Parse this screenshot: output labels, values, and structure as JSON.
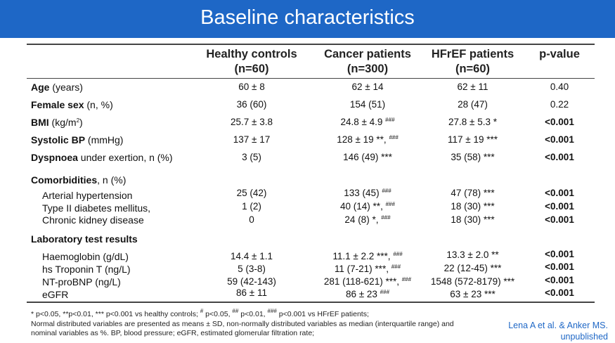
{
  "title": "Baseline characteristics",
  "columns": [
    {
      "name": "Healthy controls",
      "n": "(n=60)"
    },
    {
      "name": "Cancer patients",
      "n": "(n=300)"
    },
    {
      "name": "HFrEF patients",
      "n": "(n=60)"
    },
    {
      "name": "p-value",
      "n": ""
    }
  ],
  "rows": [
    {
      "label_bold": "Age",
      "label_rest": " (years)",
      "v1": "60 ± 8",
      "v2": "62 ± 14",
      "v2_sup": "",
      "v3": "62 ± 11",
      "v3_sup": "",
      "p": "0.40",
      "p_bold": false
    },
    {
      "label_bold": "Female sex",
      "label_rest": " (n, %)",
      "v1": "36 (60)",
      "v2": "154 (51)",
      "v2_sup": "",
      "v3": "28 (47)",
      "v3_sup": "",
      "p": "0.22",
      "p_bold": false
    },
    {
      "label_bold": "BMI",
      "label_rest": " (kg/m",
      "label_sup": "2",
      "label_end": ")",
      "v1": "25.7 ± 3.8",
      "v2": "24.8 ± 4.9",
      "v2_sup": "###",
      "v3": "27.8 ± 5.3 *",
      "v3_sup": "",
      "p": "<0.001",
      "p_bold": true
    },
    {
      "label_bold": "Systolic BP",
      "label_rest": " (mmHg)",
      "v1": "137 ± 17",
      "v2": "128 ± 19 **,",
      "v2_sup": "###",
      "v3": "117 ± 19 ***",
      "v3_sup": "",
      "p": "<0.001",
      "p_bold": true
    },
    {
      "label_bold": "Dyspnoea",
      "label_rest": " under exertion, n (%)",
      "v1": "3 (5)",
      "v2": "146 (49) ***",
      "v2_sup": "",
      "v3": "35 (58) ***",
      "v3_sup": "",
      "p": "<0.001",
      "p_bold": true
    }
  ],
  "comorbidities": {
    "heading_bold": "Comorbidities",
    "heading_rest": ", n (%)",
    "rows": [
      {
        "label": "Arterial hypertension",
        "v1": "25 (42)",
        "v2": "133 (45)",
        "v2_sup": "###",
        "v3": "47 (78) ***",
        "p": "<0.001"
      },
      {
        "label": "Type II diabetes mellitus,",
        "v1": "1 (2)",
        "v2": "40 (14) **,",
        "v2_sup": "###",
        "v3": "18 (30) ***",
        "p": "<0.001"
      },
      {
        "label": "Chronic kidney disease",
        "v1": "0",
        "v2": "24 (8) *,",
        "v2_sup": "###",
        "v3": "18 (30) ***",
        "p": "<0.001"
      }
    ]
  },
  "laboratory": {
    "heading": "Laboratory test results",
    "rows": [
      {
        "label": "Haemoglobin (g/dL)",
        "v1": "14.4 ± 1.1",
        "v2": "11.1 ± 2.2 ***,",
        "v2_sup": "###",
        "v3": "13.3 ± 2.0 **",
        "p": "<0.001"
      },
      {
        "label": "hs Troponin T (ng/L)",
        "v1": "5 (3-8)",
        "v2": "11 (7-21) ***,",
        "v2_sup": "###",
        "v3": "22 (12-45) ***",
        "p": "<0.001"
      },
      {
        "label": "NT-proBNP (ng/L)",
        "v1": "59 (42-143)",
        "v2": "281 (118-621) ***,",
        "v2_sup": "###",
        "v3": "1548 (572-8179) ***",
        "p": "<0.001"
      },
      {
        "label": "eGFR",
        "v1": "86 ± 11",
        "v2": "86 ± 23",
        "v2_sup": "###",
        "v3": "63 ± 23 ***",
        "p": "<0.001"
      }
    ]
  },
  "footnote": {
    "part1": "* p<0.05, **p<0.01, *** p<0.001 vs healthy controls; ",
    "sup1": "#",
    "part2": " p<0.05, ",
    "sup2": "##",
    "part3": " p<0.01, ",
    "sup3": "###",
    "part4": " p<0.001 vs HFrEF patients;",
    "line2": "Normal distributed variables are presented as means ± SD, non-normally distributed variables as median (interquartile range) and",
    "line3": "nominal variables as %. BP, blood pressure; eGFR, estimated glomerular filtration rate;"
  },
  "citation": {
    "line1": "Lena A et al. & Anker MS.",
    "line2": "unpublished"
  }
}
